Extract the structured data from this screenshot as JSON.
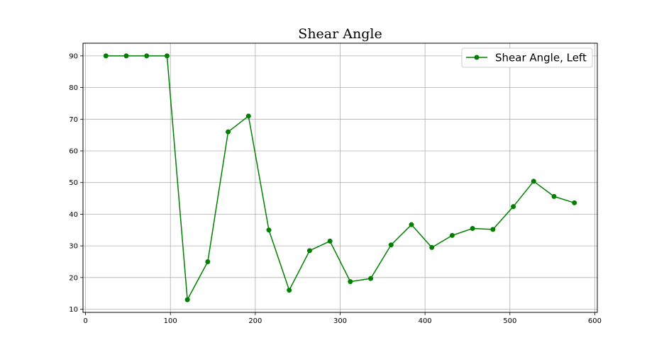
{
  "chart_data": {
    "type": "line",
    "title": "Shear Angle",
    "xlabel": "",
    "ylabel": "",
    "xlim": [
      -3,
      603
    ],
    "ylim": [
      9,
      94
    ],
    "xticks": [
      0,
      100,
      200,
      300,
      400,
      500,
      600
    ],
    "yticks": [
      10,
      20,
      30,
      40,
      50,
      60,
      70,
      80,
      90
    ],
    "grid": true,
    "legend_position": "top-right",
    "series": [
      {
        "name": "Shear Angle, Left",
        "color": "#008000",
        "marker": "circle",
        "x": [
          24,
          48,
          72,
          96,
          120,
          144,
          168,
          192,
          216,
          240,
          264,
          288,
          312,
          336,
          360,
          384,
          408,
          432,
          456,
          480,
          504,
          528,
          552,
          576
        ],
        "y": [
          90,
          90,
          90,
          90,
          13,
          25,
          66,
          71,
          35,
          16,
          28.5,
          31.5,
          18.7,
          19.7,
          30.3,
          36.7,
          29.5,
          33.3,
          35.5,
          35.2,
          42.4,
          50.4,
          45.6,
          43.6
        ]
      }
    ]
  }
}
